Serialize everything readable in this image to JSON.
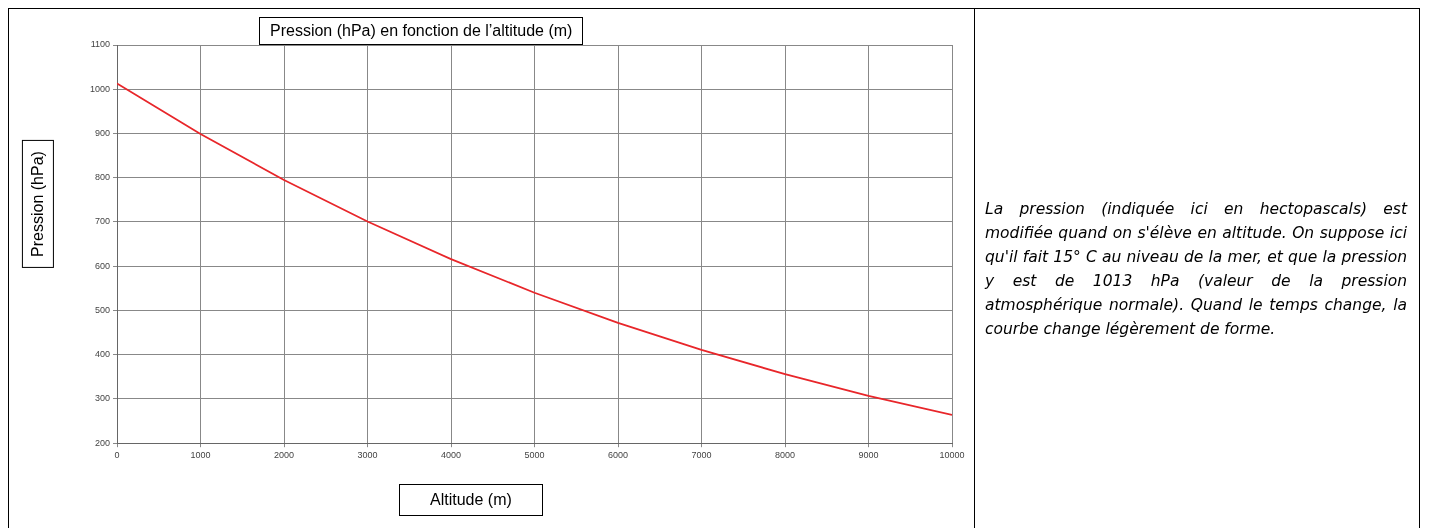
{
  "chart_data": {
    "type": "line",
    "title": "Pression (hPa) en fonction de l’altitude (m)",
    "xlabel": "Altitude (m)",
    "ylabel": "Pression (hPa)",
    "x": [
      0,
      1000,
      2000,
      3000,
      4000,
      5000,
      6000,
      7000,
      8000,
      9000,
      10000
    ],
    "series": [
      {
        "color": "#e8262a",
        "values": [
          1013,
          899,
          795,
          701,
          616,
          540,
          472,
          411,
          356,
          307,
          264
        ]
      }
    ],
    "xlim": [
      0,
      10000
    ],
    "xticks": [
      0,
      1000,
      2000,
      3000,
      4000,
      5000,
      6000,
      7000,
      8000,
      9000,
      10000
    ],
    "ylim": [
      200,
      1100
    ],
    "yticks": [
      200,
      300,
      400,
      500,
      600,
      700,
      800,
      900,
      1000,
      1100
    ],
    "grid": true,
    "legend": false,
    "marker": "none",
    "line_style": "solid",
    "annotations": [
      "La pression (indiquée ici en hectopascals) est modifiée quand on s'élève en altitude. On suppose ici qu'il fait 15° C au niveau de la mer, et que la pression y est de 1013 hPa (valeur de la pression atmosphérique normale). Quand le temps change, la courbe change légèrement de forme."
    ]
  }
}
